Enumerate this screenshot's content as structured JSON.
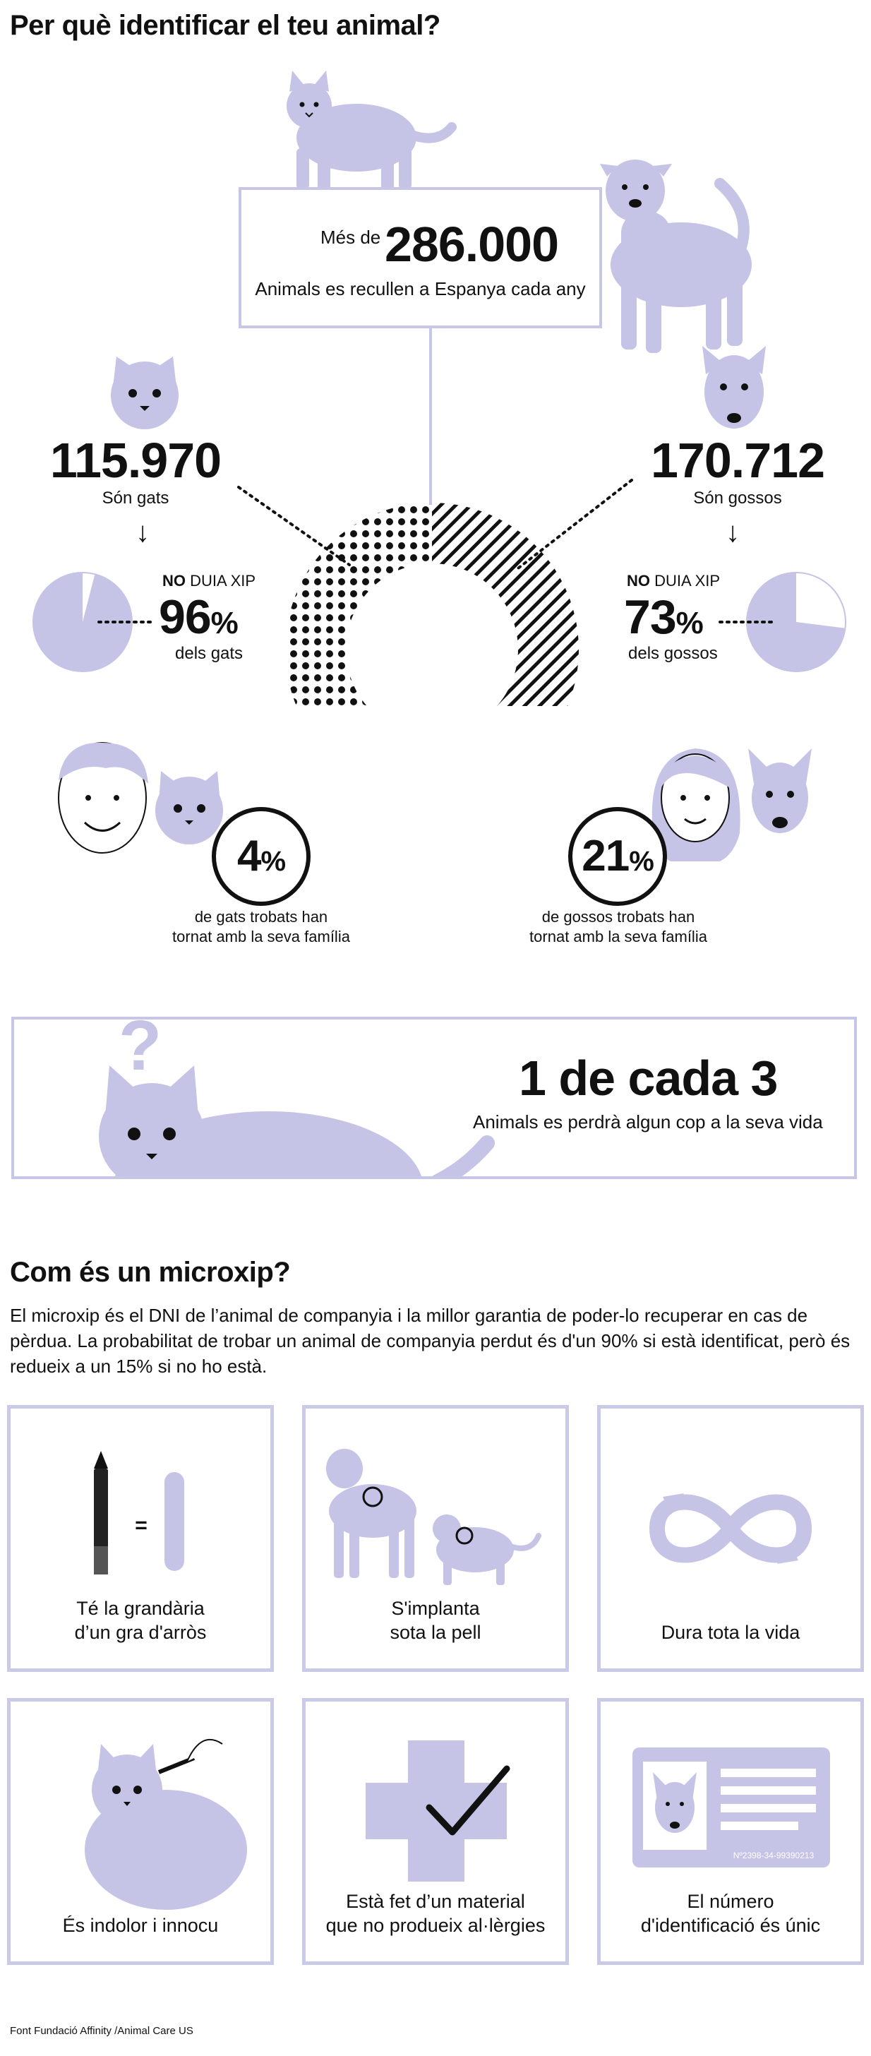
{
  "header": {
    "title": "Per què identificar el teu animal?"
  },
  "total_box": {
    "prefix": "Més de",
    "value": "286.000",
    "caption": "Animals es recullen a Espanya cada any"
  },
  "cats": {
    "value": "115.970",
    "label": "Són gats",
    "no_chip_label_bold": "NO",
    "no_chip_label_rest": "DUIA XIP",
    "no_chip_pct": "96",
    "no_chip_sub": "dels gats",
    "returned_pct": "4",
    "returned_text_1": "de gats trobats han",
    "returned_text_2": "tornat amb la seva família"
  },
  "dogs": {
    "value": "170.712",
    "label": "Són gossos",
    "no_chip_label_bold": "NO",
    "no_chip_label_rest": "DUIA XIP",
    "no_chip_pct": "73",
    "no_chip_sub": "dels gossos",
    "returned_pct": "21",
    "returned_text_1": "de gossos trobats han",
    "returned_text_2": "tornat amb la seva família"
  },
  "pct_symbol": "%",
  "arrow": "↓",
  "lost_box": {
    "question": "?",
    "headline": "1 de cada 3",
    "caption": "Animals es perdrà algun cop a la seva vida"
  },
  "microchip": {
    "title": "Com és un microxip?",
    "intro": "El microxip és el DNI de l’animal de companyia i la millor garantia de poder-lo recuperar en cas de pèrdua. La probabilitat de trobar un animal de companyia perdut és d'un 90% si està identificat, però és redueix a un 15% si no ho està.",
    "tiles": [
      {
        "caption": "Té la grandària\nd’un gra d'arròs",
        "icon": "pen-and-rice-icon",
        "symbol": "="
      },
      {
        "caption": "S'implanta\nsota la pell",
        "icon": "dog-and-cat-icon"
      },
      {
        "caption": "Dura tota la vida",
        "icon": "infinity-arrows-icon"
      },
      {
        "caption": "És indolor i innocu",
        "icon": "cat-injection-icon"
      },
      {
        "caption": "Està fet d’un material\nque no produeix al·lèrgies",
        "icon": "cross-check-icon"
      },
      {
        "caption": "El número\nd'identificació és únic",
        "icon": "id-card-icon",
        "card_number": "Nº2398-34-99390213"
      }
    ]
  },
  "source": "Font Fundació Affinity /Animal Care US",
  "colors": {
    "lavender": "#c5c3e6",
    "border": "#c8c6e6",
    "text": "#111111"
  },
  "chart_data": [
    {
      "type": "pie",
      "title": "",
      "labels": [
        "gats",
        "gossos"
      ],
      "values": [
        115970,
        170712
      ],
      "note": "donut: dotted = gats, striped = gossos"
    },
    {
      "type": "pie",
      "title": "",
      "labels": [
        "NO DUIA XIP",
        "other"
      ],
      "values": [
        96,
        4
      ],
      "subject": "gats"
    },
    {
      "type": "pie",
      "title": "",
      "labels": [
        "NO DUIA XIP",
        "other"
      ],
      "values": [
        73,
        27
      ],
      "subject": "gossos"
    }
  ]
}
